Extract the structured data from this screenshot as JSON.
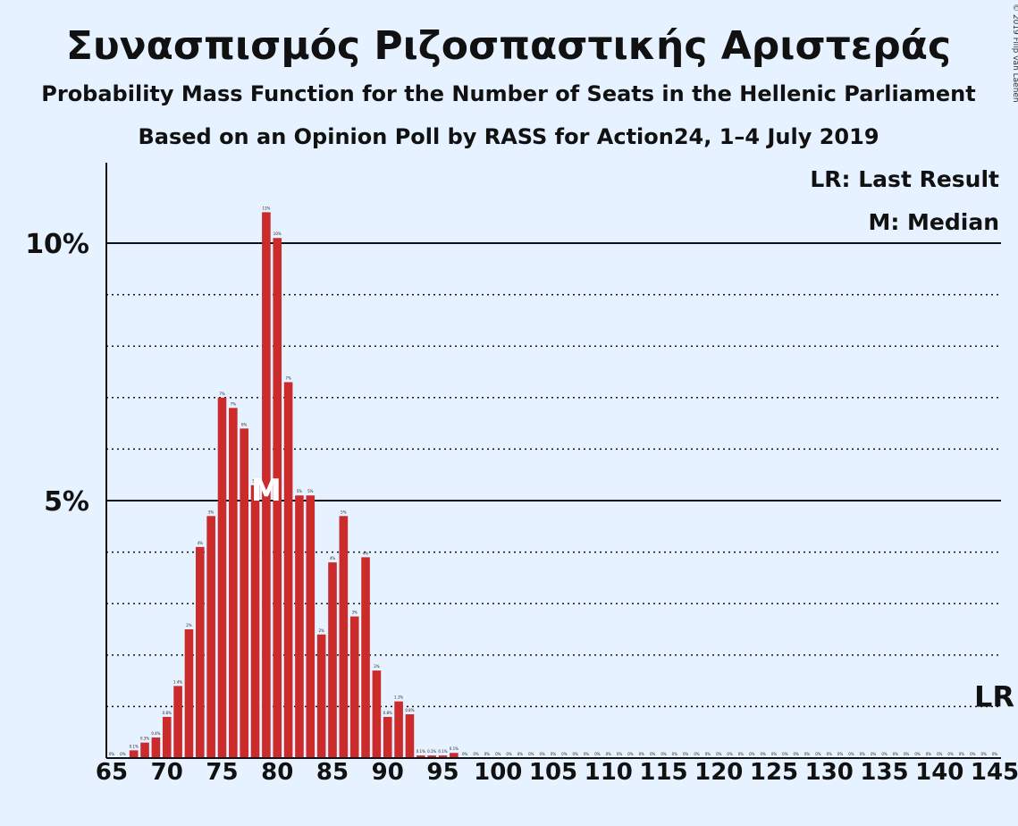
{
  "copyright": "© 2019 Filip van Laenen",
  "chart_data": {
    "type": "bar",
    "title": "Συνασπισμός Ριζοσπαστικής Αριστεράς",
    "subtitle": "Probability Mass Function for the Number of Seats in the Hellenic Parliament",
    "subtitle2": "Based on an Opinion Poll by RASS for Action24, 1–4 July 2019",
    "xlabel": "",
    "ylabel": "",
    "xlim": [
      65,
      145
    ],
    "ylim": [
      0,
      11.5
    ],
    "x_ticks": [
      65,
      70,
      75,
      80,
      85,
      90,
      95,
      100,
      105,
      110,
      115,
      120,
      125,
      130,
      135,
      140,
      145
    ],
    "x_tick_labels": [
      "65",
      "70",
      "75",
      "80",
      "85",
      "90",
      "95",
      "100",
      "105",
      "110",
      "115",
      "120",
      "125",
      "130",
      "135",
      "140",
      "145"
    ],
    "y_ticks_major": [
      5,
      10
    ],
    "y_tick_labels": [
      "5%",
      "10%"
    ],
    "y_ticks_minor": [
      1,
      2,
      3,
      4,
      6,
      7,
      8,
      9
    ],
    "x": [
      65,
      66,
      67,
      68,
      69,
      70,
      71,
      72,
      73,
      74,
      75,
      76,
      77,
      78,
      79,
      80,
      81,
      82,
      83,
      84,
      85,
      86,
      87,
      88,
      89,
      90,
      91,
      92,
      93,
      94,
      95,
      96,
      97,
      98,
      99,
      100,
      101,
      102,
      103,
      104,
      105,
      106,
      107,
      108,
      109,
      110,
      111,
      112,
      113,
      114,
      115,
      116,
      117,
      118,
      119,
      120,
      121,
      122,
      123,
      124,
      125,
      126,
      127,
      128,
      129,
      130,
      131,
      132,
      133,
      134,
      135,
      136,
      137,
      138,
      139,
      140,
      141,
      142,
      143,
      144,
      145
    ],
    "values": [
      0,
      0,
      0.15,
      0.3,
      0.4,
      0.8,
      1.4,
      2.5,
      4.1,
      4.7,
      7.0,
      6.8,
      6.4,
      5.3,
      10.6,
      10.1,
      7.3,
      5.1,
      5.1,
      2.4,
      3.8,
      4.7,
      2.75,
      3.9,
      1.7,
      0.8,
      1.1,
      0.85,
      0.05,
      0.05,
      0.05,
      0.1,
      0,
      0,
      0,
      0,
      0,
      0,
      0,
      0,
      0,
      0,
      0,
      0,
      0,
      0,
      0,
      0,
      0,
      0,
      0,
      0,
      0,
      0,
      0,
      0,
      0,
      0,
      0,
      0,
      0,
      0,
      0,
      0,
      0,
      0,
      0,
      0,
      0,
      0,
      0,
      0,
      0,
      0,
      0,
      0,
      0,
      0,
      0,
      0,
      0
    ],
    "value_labels": [
      "0%",
      "0%",
      "0.1%",
      "0.3%",
      "0.4%",
      "0.8%",
      "1.4%",
      "2%",
      "4%",
      "5%",
      "7%",
      "7%",
      "6%",
      "5%",
      "11%",
      "10%",
      "7%",
      "5%",
      "5%",
      "2%",
      "4%",
      "5%",
      "3%",
      "4%",
      "2%",
      "0.8%",
      "1.1%",
      "0.8%",
      "0.1%",
      "0.1%",
      "0.1%",
      "0.1%",
      "0%",
      "0%",
      "0%",
      "0%",
      "0%",
      "0%",
      "0%",
      "0%",
      "0%",
      "0%",
      "0%",
      "0%",
      "0%",
      "0%",
      "0%",
      "0%",
      "0%",
      "0%",
      "0%",
      "0%",
      "0%",
      "0%",
      "0%",
      "0%",
      "0%",
      "0%",
      "0%",
      "0%",
      "0%",
      "0%",
      "0%",
      "0%",
      "0%",
      "0%",
      "0%",
      "0%",
      "0%",
      "0%",
      "0%",
      "0%",
      "0%",
      "0%",
      "0%",
      "0%",
      "0%",
      "0%",
      "0%",
      "0%",
      "0%"
    ],
    "bar_color": "#cc2b2b",
    "median_seat": 79,
    "median_marker": "M",
    "last_result_seat": 145,
    "last_result_value": 1.0,
    "last_result_marker": "LR",
    "legend": {
      "lr": "LR: Last Result",
      "m": "M: Median",
      "position": "top-right"
    }
  }
}
